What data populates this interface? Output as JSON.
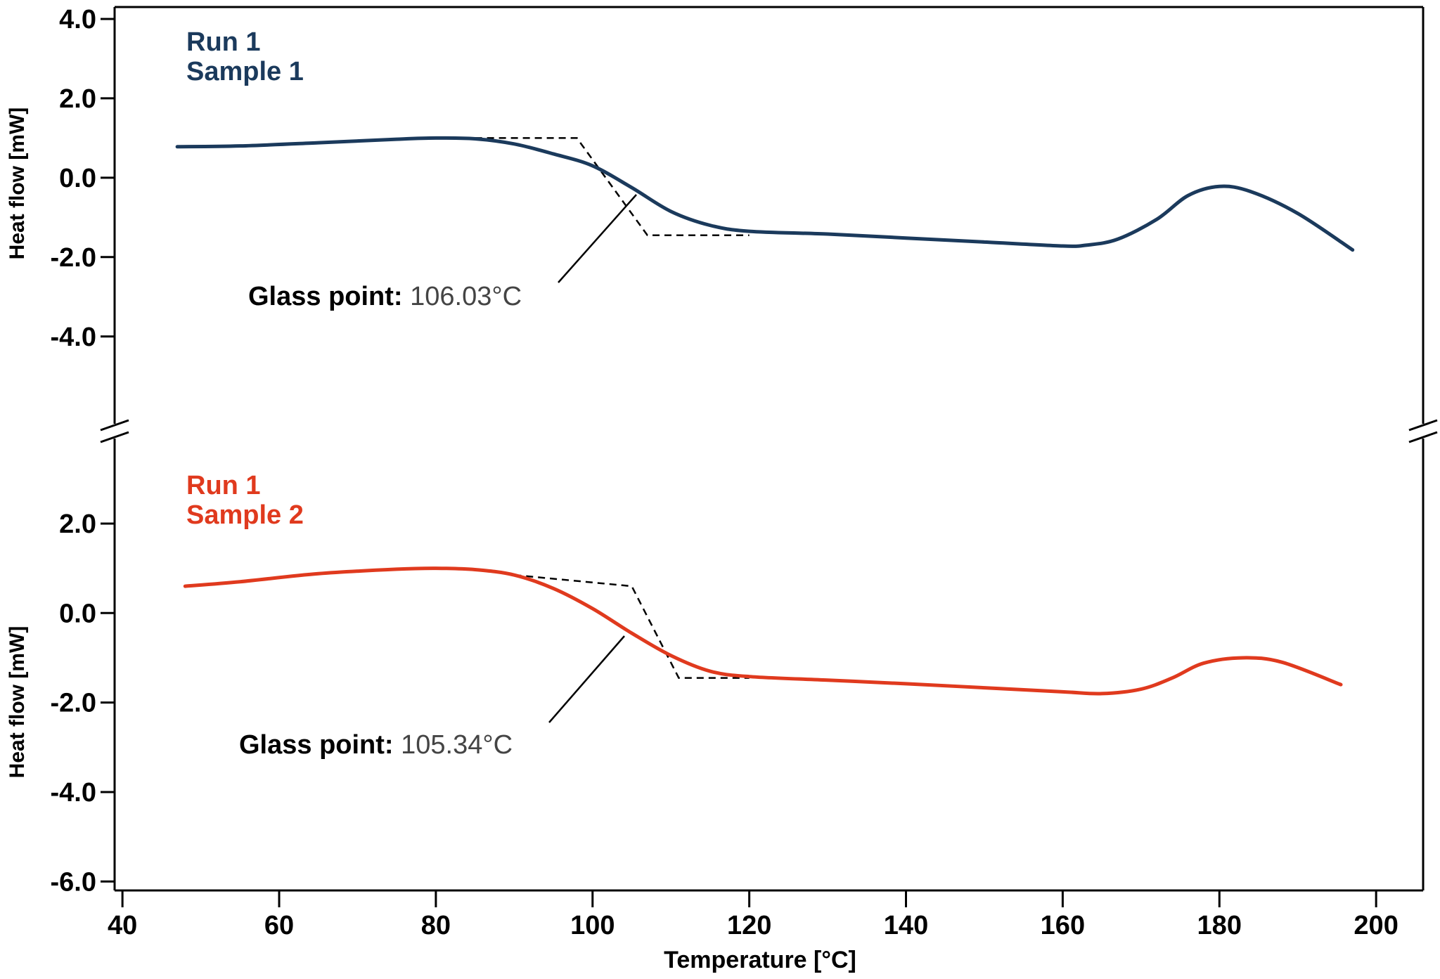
{
  "chart_data": [
    {
      "type": "line",
      "y_label": "Heat flow [mW]",
      "xlim": [
        39,
        206
      ],
      "ylim": [
        -6.2,
        4.3
      ],
      "yticks": [
        {
          "value": 4,
          "label": "4.0"
        },
        {
          "value": 2,
          "label": "2.0"
        },
        {
          "value": 0,
          "label": "0.0"
        },
        {
          "value": -2,
          "label": "-2.0"
        },
        {
          "value": -4,
          "label": "-4.0"
        }
      ],
      "series": [
        {
          "name": "Run 1",
          "sample": "Sample 1",
          "color": "#1b3a5c",
          "x": [
            47,
            55,
            65,
            75,
            80,
            85,
            90,
            95,
            100,
            105,
            110,
            115,
            120,
            130,
            140,
            150,
            160,
            163,
            167,
            172,
            176,
            180,
            184,
            190,
            197
          ],
          "values": [
            0.78,
            0.8,
            0.88,
            0.97,
            1.0,
            0.98,
            0.85,
            0.6,
            0.3,
            -0.25,
            -0.85,
            -1.2,
            -1.35,
            -1.42,
            -1.52,
            -1.62,
            -1.72,
            -1.7,
            -1.55,
            -1.05,
            -0.45,
            -0.22,
            -0.35,
            -0.9,
            -1.82
          ]
        }
      ],
      "tangent": {
        "x": [
          85,
          98,
          107,
          120
        ],
        "y": [
          1.0,
          1.0,
          -1.45,
          -1.45
        ]
      },
      "annotation": {
        "label": "Glass point:",
        "value": "106.03°C"
      }
    },
    {
      "type": "line",
      "y_label": "Heat flow [mW]",
      "x_label": "Temperature [°C]",
      "xlim": [
        39,
        206
      ],
      "ylim": [
        -6.2,
        3.9
      ],
      "xticks": [
        40,
        60,
        80,
        100,
        120,
        140,
        160,
        180,
        200
      ],
      "yticks": [
        {
          "value": 2,
          "label": "2.0"
        },
        {
          "value": 0,
          "label": "0.0"
        },
        {
          "value": -2,
          "label": "-2.0"
        },
        {
          "value": -4,
          "label": "-4.0"
        },
        {
          "value": -6,
          "label": "-6.0"
        }
      ],
      "series": [
        {
          "name": "Run 1",
          "sample": "Sample 2",
          "color": "#e03a1e",
          "x": [
            48,
            55,
            65,
            75,
            80,
            85,
            90,
            95,
            100,
            105,
            110,
            115,
            120,
            130,
            140,
            150,
            160,
            165,
            170,
            174,
            178,
            183,
            188,
            195.5
          ],
          "values": [
            0.6,
            0.7,
            0.88,
            0.98,
            1.0,
            0.97,
            0.85,
            0.55,
            0.1,
            -0.45,
            -0.95,
            -1.3,
            -1.42,
            -1.5,
            -1.58,
            -1.67,
            -1.76,
            -1.8,
            -1.7,
            -1.45,
            -1.12,
            -1.0,
            -1.1,
            -1.6
          ]
        }
      ],
      "tangent": {
        "x": [
          90,
          105,
          111,
          120
        ],
        "y": [
          0.85,
          0.6,
          -1.45,
          -1.45
        ]
      },
      "annotation": {
        "label": "Glass point:",
        "value": "105.34°C"
      }
    }
  ]
}
